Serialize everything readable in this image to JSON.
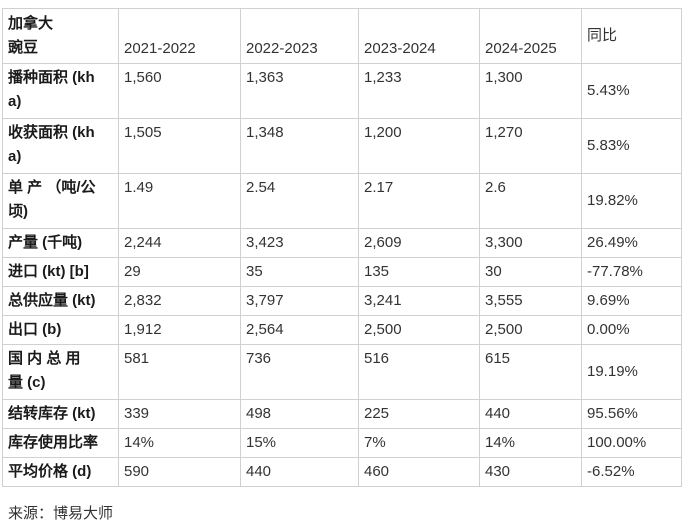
{
  "table": {
    "corner_label": "加拿大\n豌豆",
    "year_columns": [
      "2021-2022",
      "2022-2023",
      "2023-2024",
      "2024-2025"
    ],
    "yoy_label": "同比",
    "rows": [
      {
        "label": "播种面积 (kh\na)",
        "values": [
          "1,560",
          "1,363",
          "1,233",
          "1,300"
        ],
        "yoy": "5.43%"
      },
      {
        "label": "收获面积 (kh\na)",
        "values": [
          "1,505",
          "1,348",
          "1,200",
          "1,270"
        ],
        "yoy": "5.83%"
      },
      {
        "label": "单 产 （吨/公\n顷)",
        "values": [
          "1.49",
          "2.54",
          "2.17",
          "2.6"
        ],
        "yoy": "19.82%"
      },
      {
        "label": "产量 (千吨)",
        "values": [
          "2,244",
          "3,423",
          "2,609",
          "3,300"
        ],
        "yoy": "26.49%"
      },
      {
        "label": "进口 (kt) [b]",
        "values": [
          "29",
          "35",
          "135",
          "30"
        ],
        "yoy": "-77.78%"
      },
      {
        "label": "总供应量 (kt)",
        "values": [
          "2,832",
          "3,797",
          "3,241",
          "3,555"
        ],
        "yoy": "9.69%"
      },
      {
        "label": "出口 (b)",
        "values": [
          "1,912",
          "2,564",
          "2,500",
          "2,500"
        ],
        "yoy": "0.00%"
      },
      {
        "label": "国 内 总 用\n量 (c)",
        "values": [
          "581",
          "736",
          "516",
          "615"
        ],
        "yoy": "19.19%"
      },
      {
        "label": "结转库存 (kt)",
        "values": [
          "339",
          "498",
          "225",
          "440"
        ],
        "yoy": "95.56%"
      },
      {
        "label": "库存使用比率",
        "values": [
          "14%",
          "15%",
          "7%",
          "14%"
        ],
        "yoy": "100.00%"
      },
      {
        "label": "平均价格 (d)",
        "values": [
          "590",
          "440",
          "460",
          "430"
        ],
        "yoy": "-6.52%"
      }
    ]
  },
  "source": "来源：博易大师"
}
